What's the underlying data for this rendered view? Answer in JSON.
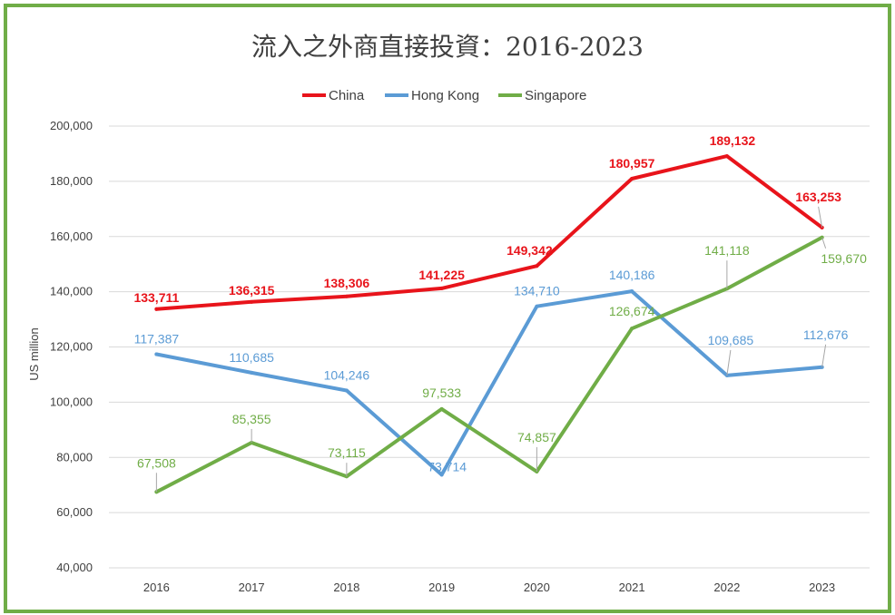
{
  "chart_data": {
    "type": "line",
    "title": "流入之外商直接投資：2016-2023",
    "xlabel": "",
    "ylabel": "US million",
    "categories": [
      "2016",
      "2017",
      "2018",
      "2019",
      "2020",
      "2021",
      "2022",
      "2023"
    ],
    "ylim": [
      40000,
      200000
    ],
    "yticks": [
      40000,
      60000,
      80000,
      100000,
      120000,
      140000,
      160000,
      180000,
      200000
    ],
    "ytick_labels": [
      "40,000",
      "60,000",
      "80,000",
      "100,000",
      "120,000",
      "140,000",
      "160,000",
      "180,000",
      "200,000"
    ],
    "grid": true,
    "legend_position": "top",
    "series": [
      {
        "name": "China",
        "color": "#e8141b",
        "values": [
          133711,
          136315,
          138306,
          141225,
          149342,
          180957,
          189132,
          163253
        ],
        "labels": [
          "133,711",
          "136,315",
          "138,306",
          "141,225",
          "149,342",
          "180,957",
          "189,132",
          "163,253"
        ]
      },
      {
        "name": "Hong Kong",
        "color": "#5b9bd5",
        "values": [
          117387,
          110685,
          104246,
          73714,
          134710,
          140186,
          109685,
          112676
        ],
        "labels": [
          "117,387",
          "110,685",
          "104,246",
          "73,714",
          "134,710",
          "140,186",
          "109,685",
          "112,676"
        ]
      },
      {
        "name": "Singapore",
        "color": "#70ad47",
        "values": [
          67508,
          85355,
          73115,
          97533,
          74857,
          126674,
          141118,
          159670
        ],
        "labels": [
          "67,508",
          "85,355",
          "73,115",
          "97,533",
          "74,857",
          "126,674",
          "141,118",
          "159,670"
        ]
      }
    ]
  }
}
